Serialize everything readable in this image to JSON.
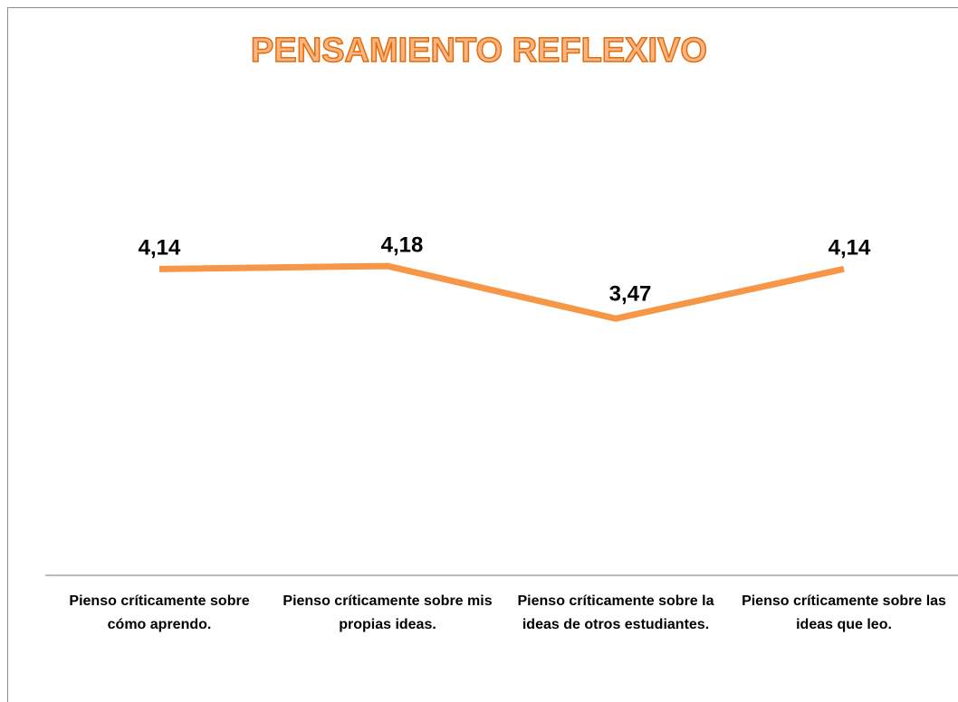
{
  "chart_data": {
    "type": "line",
    "title": "PENSAMIENTO REFLEXIVO",
    "categories": [
      "Pienso críticamente sobre cómo aprendo.",
      "Pienso críticamente sobre mis propias ideas.",
      "Pienso críticamente sobre la ideas de otros estudiantes.",
      "Pienso críticamente sobre las ideas que leo."
    ],
    "series": [
      {
        "name": "Pensamiento reflexivo",
        "color": "#f79646",
        "values": [
          4.14,
          4.18,
          3.47,
          4.14
        ],
        "value_labels": [
          "4,14",
          "4,18",
          "3,47",
          "4,14"
        ]
      }
    ],
    "ylim": [
      0,
      5
    ]
  }
}
